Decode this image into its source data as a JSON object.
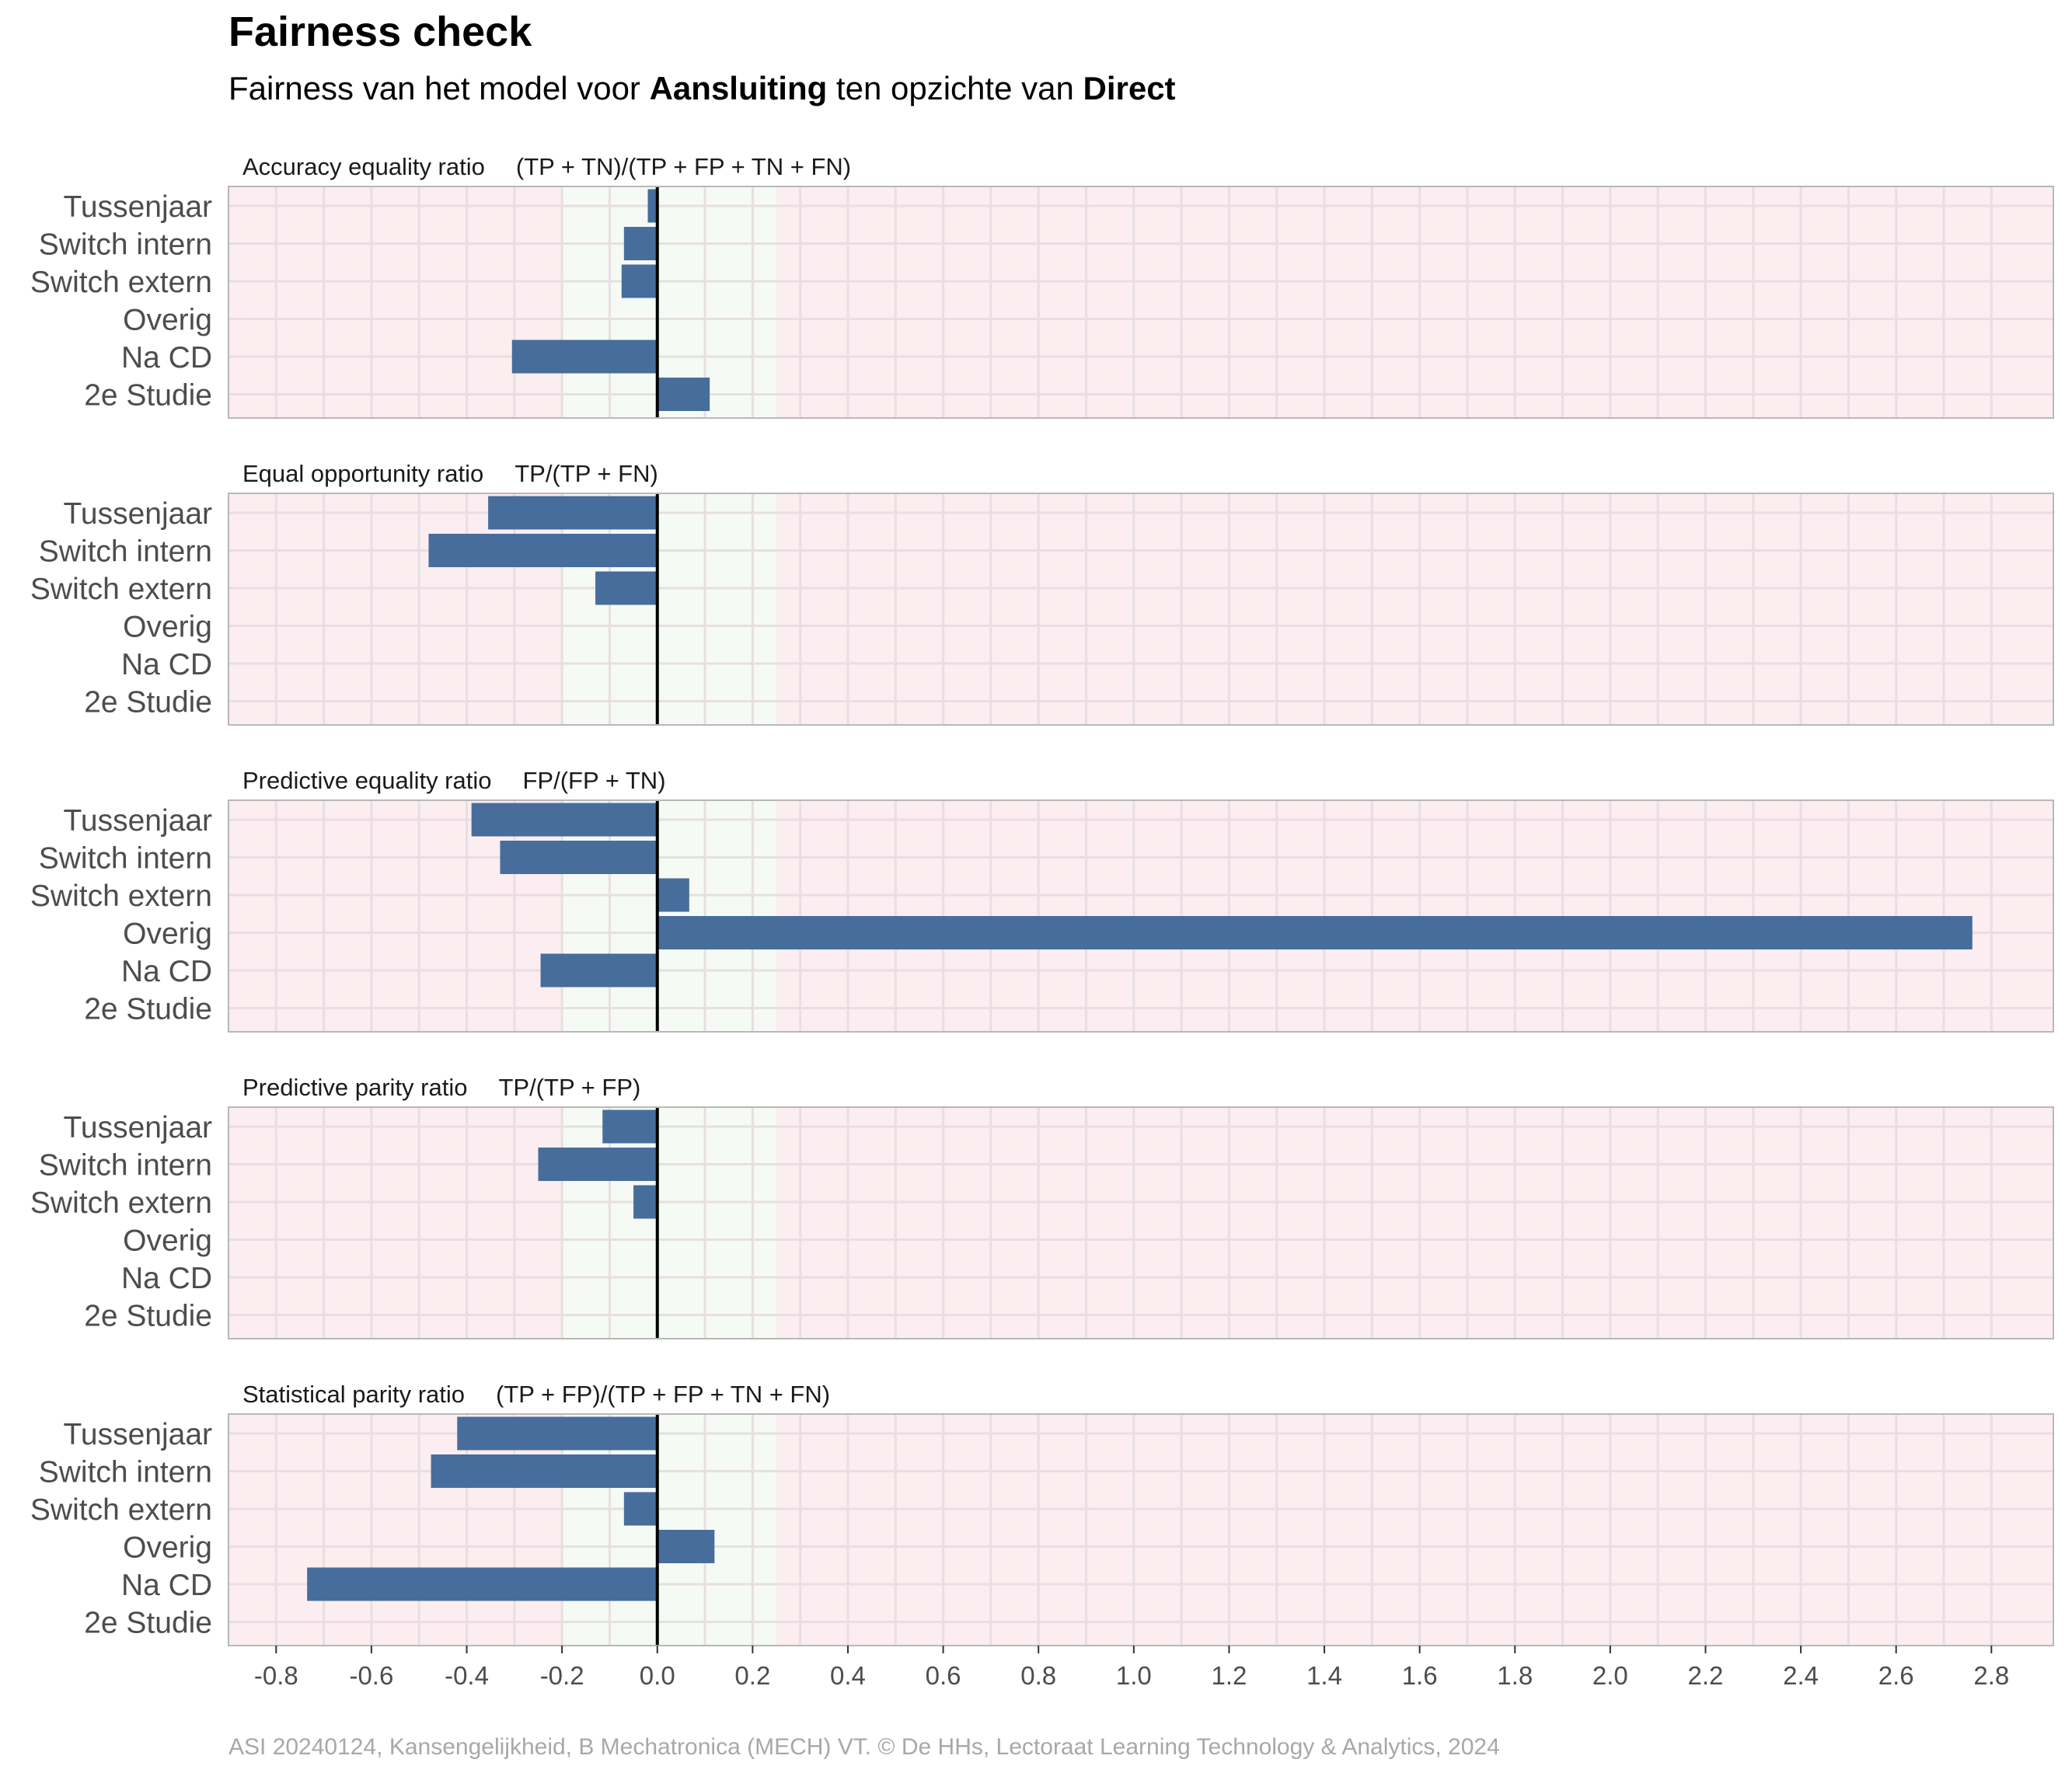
{
  "title": "Fairness check",
  "subtitle": {
    "prefix": "Fairness van het model voor ",
    "bold_1": "Aansluiting",
    "middle": " ten opzichte van ",
    "bold_2": "Direct"
  },
  "caption": "ASI 20240124, Kansengelijkheid, B Mechatronica (MECH) VT. © De HHs, Lectoraat Learning Technology & Analytics, 2024",
  "colors": {
    "bar": "#476d9c",
    "fair_zone": "#f6faf5",
    "unfair_zone": "#fcedf0",
    "grid": "#e6dfe3",
    "zero_line": "#000000",
    "panel_border": "#b8b8b8"
  },
  "chart_data": {
    "type": "bar",
    "orientation": "horizontal",
    "categories": [
      "Tussenjaar",
      "Switch intern",
      "Switch extern",
      "Overig",
      "Na CD",
      "2e Studie"
    ],
    "xlim": [
      -0.9,
      2.93
    ],
    "x_ticks": [
      -0.8,
      -0.6,
      -0.4,
      -0.2,
      0.0,
      0.2,
      0.4,
      0.6,
      0.8,
      1.0,
      1.2,
      1.4,
      1.6,
      1.8,
      2.0,
      2.2,
      2.4,
      2.6,
      2.8
    ],
    "x_tick_labels": [
      "-0.8",
      "-0.6",
      "-0.4",
      "-0.2",
      "0.0",
      "0.2",
      "0.4",
      "0.6",
      "0.8",
      "1.0",
      "1.2",
      "1.4",
      "1.6",
      "1.8",
      "2.0",
      "2.2",
      "2.4",
      "2.6",
      "2.8"
    ],
    "fair_range": [
      -0.2,
      0.25
    ],
    "grid": true,
    "panels": [
      {
        "name": "Accuracy equality ratio",
        "formula": "(TP + TN)/(TP + FP + TN + FN)",
        "values": [
          -0.02,
          -0.07,
          -0.075,
          null,
          -0.305,
          0.11
        ]
      },
      {
        "name": "Equal opportunity ratio",
        "formula": "TP/(TP + FN)",
        "values": [
          -0.355,
          -0.48,
          -0.13,
          null,
          null,
          null
        ]
      },
      {
        "name": "Predictive equality ratio",
        "formula": "FP/(FP + TN)",
        "values": [
          -0.39,
          -0.33,
          0.067,
          2.76,
          -0.245,
          null
        ]
      },
      {
        "name": "Predictive parity ratio",
        "formula": "TP/(TP + FP)",
        "values": [
          -0.115,
          -0.25,
          -0.05,
          null,
          null,
          null
        ]
      },
      {
        "name": "Statistical parity ratio",
        "formula": "(TP + FP)/(TP + FP + TN + FN)",
        "values": [
          -0.42,
          -0.475,
          -0.07,
          0.12,
          -0.735,
          null
        ]
      }
    ]
  }
}
